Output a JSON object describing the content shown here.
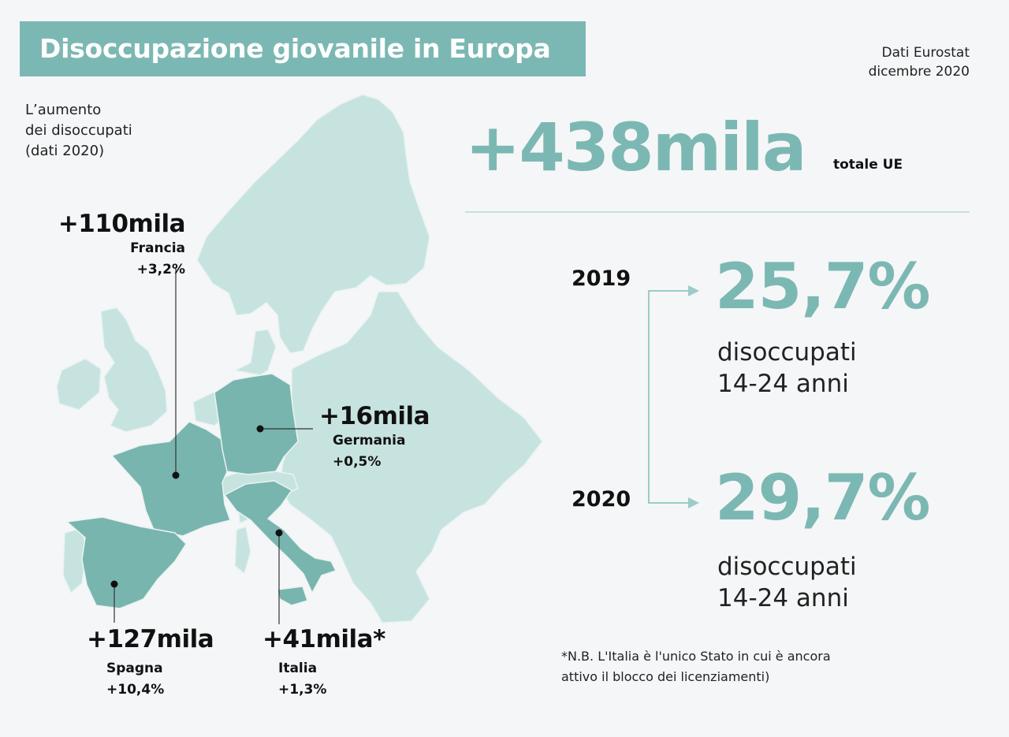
{
  "title": "Disoccupazione giovanile in Europa",
  "source": {
    "line1": "Dati Eurostat",
    "line2": "dicembre 2020"
  },
  "map_label": {
    "line1": "L’aumento",
    "line2": "dei disoccupati",
    "line3": "(dati 2020)"
  },
  "colors": {
    "accent": "#7cb8b3",
    "highlight": "#78b5ae",
    "land": "#c7e3df",
    "background": "#f5f6f7"
  },
  "countries": [
    {
      "amount": "+110mila",
      "name": "Francia",
      "pct": "+3,2%"
    },
    {
      "amount": "+16mila",
      "name": "Germania",
      "pct": "+0,5%"
    },
    {
      "amount": "+127mila",
      "name": "Spagna",
      "pct": "+10,4%"
    },
    {
      "amount": "+41mila*",
      "name": "Italia",
      "pct": "+1,3%"
    }
  ],
  "total": {
    "value": "+438mila",
    "unit": "totale UE"
  },
  "comparison": [
    {
      "year": "2019",
      "value": "25,7%",
      "desc_line1": "disoccupati",
      "desc_line2": "14-24 anni"
    },
    {
      "year": "2020",
      "value": "29,7%",
      "desc_line1": "disoccupati",
      "desc_line2": "14-24 anni"
    }
  ],
  "note": {
    "line1": "*N.B. L'Italia è l'unico Stato in cui è ancora",
    "line2": "attivo il blocco dei licenziamenti)"
  }
}
